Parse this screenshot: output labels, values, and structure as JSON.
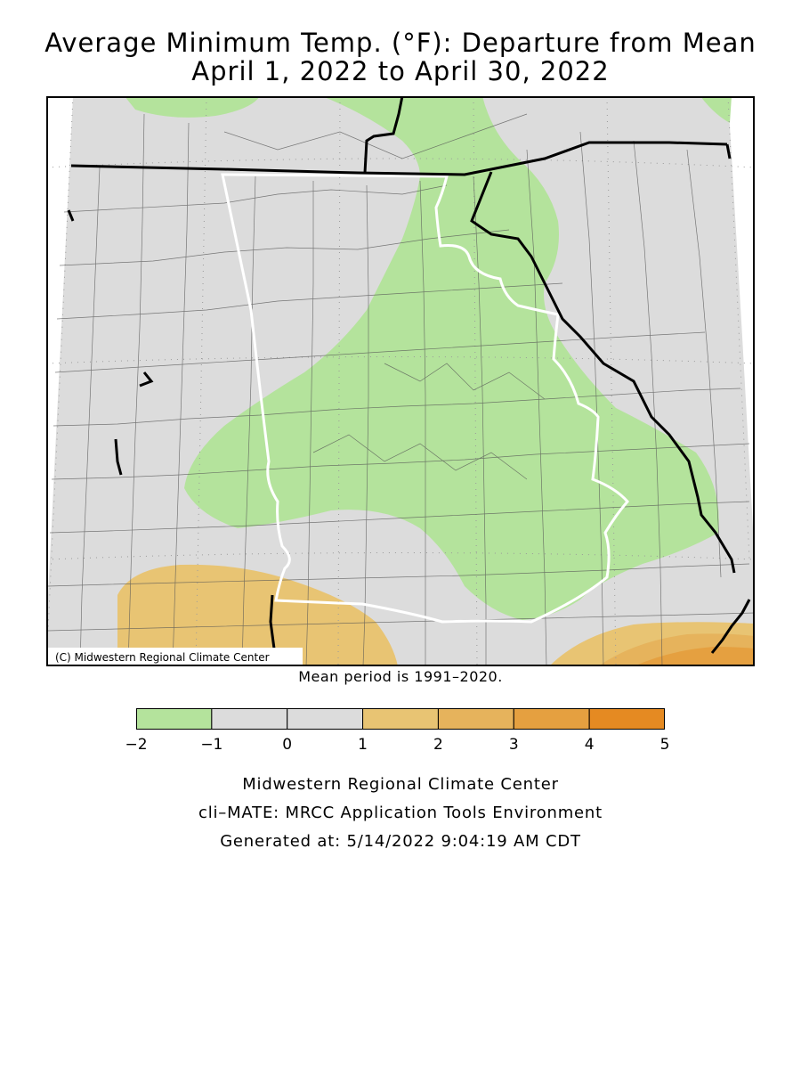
{
  "title": {
    "line1": "Average Minimum Temp. (°F): Departure from Mean",
    "line2": "April 1, 2022 to April 30, 2022"
  },
  "map": {
    "copyright": "(C) Midwestern Regional Climate Center",
    "mean_period_note": "Mean period is 1991–2020."
  },
  "legend": {
    "bins": [
      {
        "from": -2,
        "to": -1,
        "color": "#b4e39c"
      },
      {
        "from": -1,
        "to": 0,
        "color": "#dcdcdc"
      },
      {
        "from": 0,
        "to": 1,
        "color": "#dcdcdc"
      },
      {
        "from": 1,
        "to": 2,
        "color": "#e8c473"
      },
      {
        "from": 2,
        "to": 3,
        "color": "#e6b35c"
      },
      {
        "from": 3,
        "to": 4,
        "color": "#e5a040"
      },
      {
        "from": 4,
        "to": 5,
        "color": "#e58a22"
      }
    ],
    "tick_labels": [
      "−2",
      "−1",
      "0",
      "1",
      "2",
      "3",
      "4",
      "5"
    ]
  },
  "footer": {
    "line1": "Midwestern Regional Climate Center",
    "line2": "cli–MATE: MRCC Application Tools Environment",
    "line3": "Generated at: 5/14/2022 9:04:19 AM CDT"
  }
}
